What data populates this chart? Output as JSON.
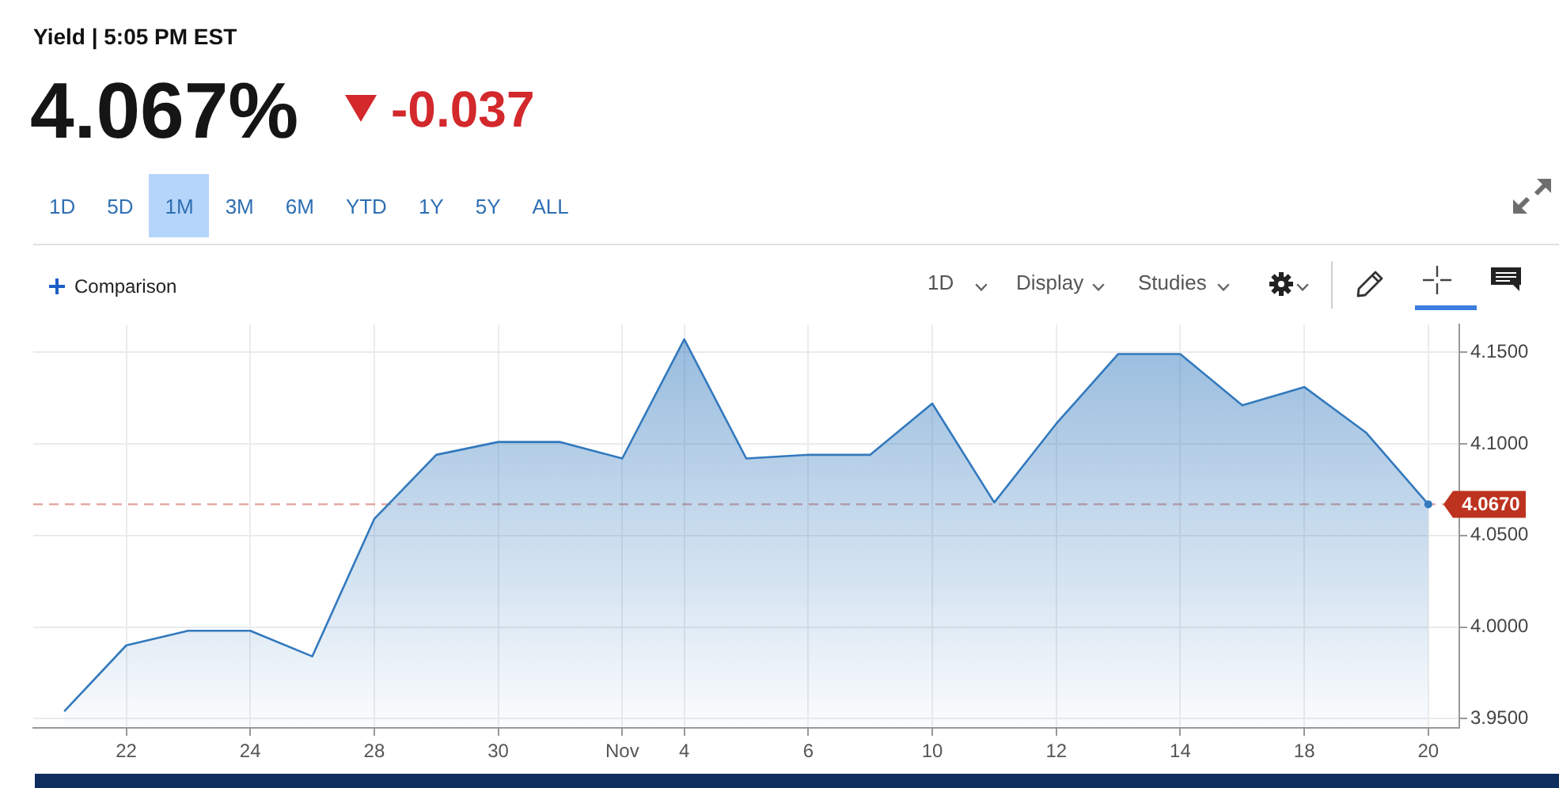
{
  "chart_data": {
    "type": "area",
    "title": "Yield | 5:05 PM EST",
    "subtitle": "4.067%",
    "annotations": [
      "-0.037",
      "1D",
      "5D",
      "1M",
      "3M",
      "6M",
      "YTD",
      "1Y",
      "5Y",
      "ALL",
      "Comparison",
      "1D",
      "Display",
      "Studies"
    ],
    "categories": [
      null,
      "22",
      null,
      "24",
      null,
      "28",
      null,
      "30",
      null,
      "Nov",
      "4",
      null,
      "6",
      null,
      "10",
      null,
      "12",
      null,
      "14",
      null,
      "18",
      null,
      "20"
    ],
    "values": [
      3.954,
      3.99,
      3.998,
      3.998,
      3.984,
      4.059,
      4.094,
      4.101,
      4.101,
      4.092,
      4.157,
      4.092,
      4.094,
      4.094,
      4.122,
      4.068,
      4.111,
      4.149,
      4.149,
      4.121,
      4.131,
      4.106,
      4.067
    ],
    "color": "#3279bd",
    "ylim": [
      3.945,
      4.165
    ],
    "yticks": [
      {
        "value": 3.95,
        "label": "3.9500"
      },
      {
        "value": 4.0,
        "label": "4.0000"
      },
      {
        "value": 4.05,
        "label": "4.0500"
      },
      {
        "value": 4.1,
        "label": "4.1000"
      },
      {
        "value": 4.15,
        "label": "4.1500"
      }
    ],
    "grid": true,
    "ref_lines": [
      {
        "axis": "y",
        "value": 4.067,
        "label": "4.0670",
        "color": "#bd3320",
        "line_style": "dashed"
      }
    ]
  }
}
